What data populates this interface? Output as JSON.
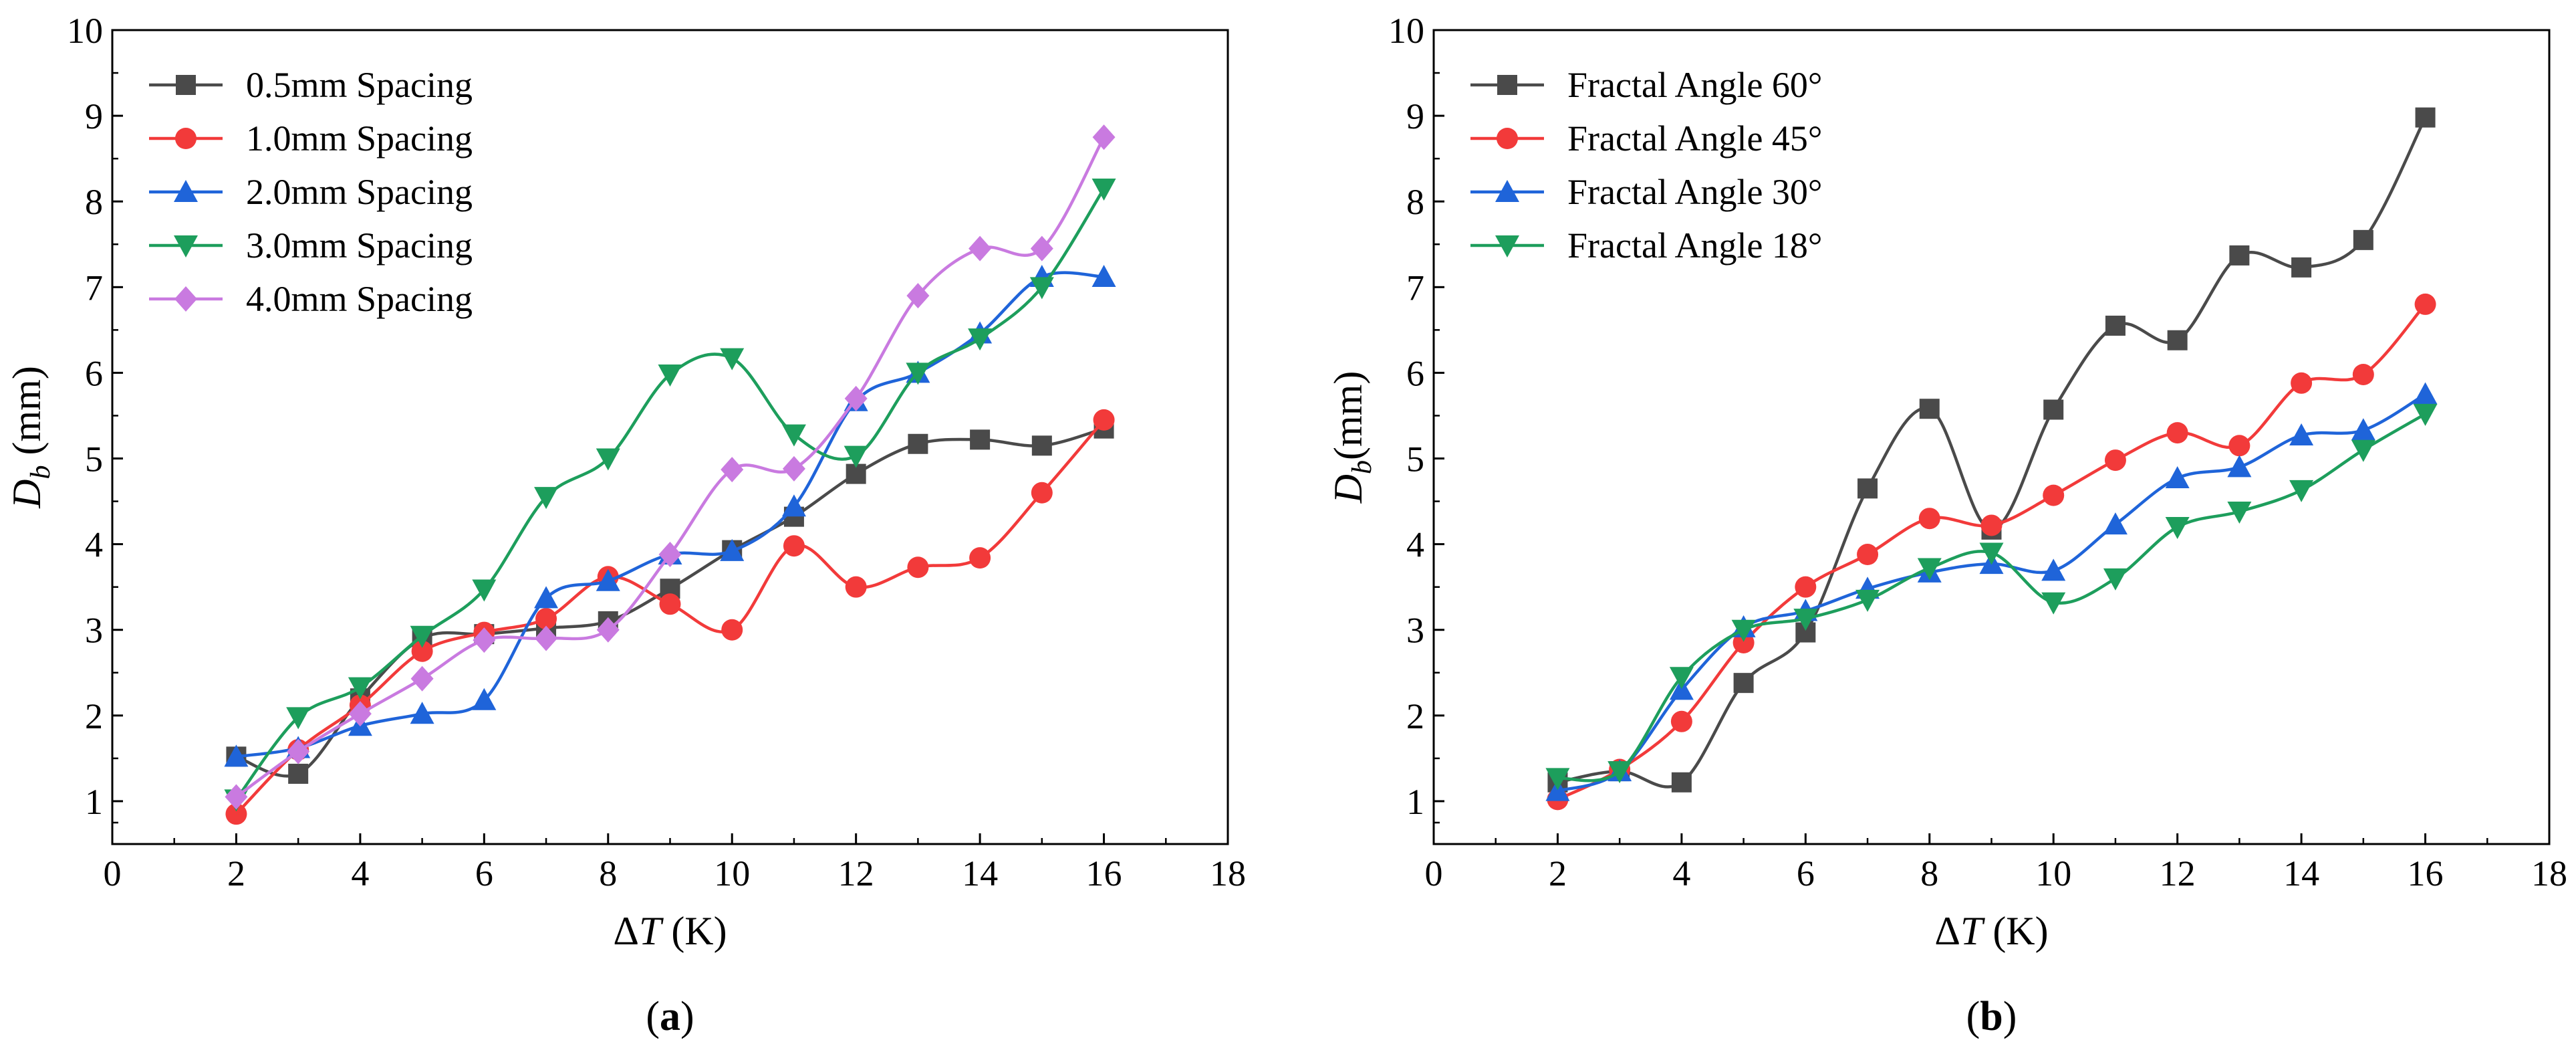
{
  "chart_data": [
    {
      "panel": "a",
      "panel_label": "(a)",
      "type": "line",
      "xlabel": "ΔT (K)",
      "ylabel": "D_b (mm)",
      "ylabel_parts": {
        "symbol": "D",
        "subscript": "b",
        "unit": " (mm)"
      },
      "xlim": [
        0,
        18
      ],
      "ylim": [
        0.5,
        10
      ],
      "xticks": [
        0,
        2,
        4,
        6,
        8,
        10,
        12,
        14,
        16,
        18
      ],
      "yticks": [
        1,
        2,
        3,
        4,
        5,
        6,
        7,
        8,
        9,
        10
      ],
      "legend_position": "top-left",
      "x": [
        2,
        3,
        4,
        5,
        6,
        7,
        8,
        9,
        10,
        11,
        12,
        13,
        14,
        15,
        16
      ],
      "series": [
        {
          "name": "0.5mm Spacing",
          "color": "#4a4a4a",
          "marker": "square",
          "values": [
            1.52,
            1.32,
            2.2,
            2.9,
            2.95,
            3.02,
            3.1,
            3.48,
            3.93,
            4.32,
            4.82,
            5.17,
            5.22,
            5.15,
            5.35
          ]
        },
        {
          "name": "1.0mm Spacing",
          "color": "#f23a3a",
          "marker": "circle",
          "values": [
            0.85,
            1.6,
            2.12,
            2.75,
            2.97,
            3.13,
            3.62,
            3.3,
            3.0,
            3.98,
            3.5,
            3.73,
            3.84,
            4.6,
            5.45
          ]
        },
        {
          "name": "2.0mm Spacing",
          "color": "#1f64d9",
          "marker": "triangle-up",
          "values": [
            1.52,
            1.62,
            1.88,
            2.02,
            2.18,
            3.37,
            3.57,
            3.88,
            3.92,
            4.44,
            5.67,
            6.0,
            6.46,
            7.12,
            7.12
          ]
        },
        {
          "name": "3.0mm Spacing",
          "color": "#1d9e5c",
          "marker": "triangle-down",
          "values": [
            1.02,
            1.98,
            2.33,
            2.93,
            3.47,
            4.55,
            5.0,
            5.98,
            6.17,
            5.28,
            5.03,
            6.0,
            6.4,
            7.0,
            8.15
          ]
        },
        {
          "name": "4.0mm Spacing",
          "color": "#c97ae0",
          "marker": "diamond",
          "values": [
            1.05,
            1.58,
            2.02,
            2.43,
            2.88,
            2.9,
            3.0,
            3.88,
            4.87,
            4.88,
            5.7,
            6.9,
            7.45,
            7.45,
            8.75
          ]
        }
      ]
    },
    {
      "panel": "b",
      "panel_label": "(b)",
      "type": "line",
      "xlabel": "ΔT (K)",
      "ylabel": "D_b(mm)",
      "ylabel_parts": {
        "symbol": "D",
        "subscript": "b",
        "unit": "(mm)"
      },
      "xlim": [
        0,
        18
      ],
      "ylim": [
        0.5,
        10
      ],
      "xticks": [
        0,
        2,
        4,
        6,
        8,
        10,
        12,
        14,
        16,
        18
      ],
      "yticks": [
        1,
        2,
        3,
        4,
        5,
        6,
        7,
        8,
        9,
        10
      ],
      "legend_position": "top-left",
      "x": [
        2,
        3,
        4,
        5,
        6,
        7,
        8,
        9,
        10,
        11,
        12,
        13,
        14,
        15,
        16
      ],
      "series": [
        {
          "name": "Fractal Angle 60°",
          "color": "#4a4a4a",
          "marker": "square",
          "values": [
            1.22,
            1.35,
            1.22,
            2.38,
            2.97,
            4.65,
            5.58,
            4.17,
            5.57,
            6.55,
            6.38,
            7.37,
            7.23,
            7.55,
            8.98
          ]
        },
        {
          "name": "Fractal Angle 45°",
          "color": "#f23a3a",
          "marker": "circle",
          "values": [
            1.02,
            1.37,
            1.93,
            2.85,
            3.5,
            3.88,
            4.3,
            4.22,
            4.57,
            4.98,
            5.3,
            5.15,
            5.88,
            5.98,
            6.8
          ]
        },
        {
          "name": "Fractal Angle 30°",
          "color": "#1f64d9",
          "marker": "triangle-up",
          "values": [
            1.12,
            1.35,
            2.3,
            3.03,
            3.22,
            3.48,
            3.67,
            3.77,
            3.69,
            4.23,
            4.77,
            4.9,
            5.27,
            5.33,
            5.75
          ]
        },
        {
          "name": "Fractal Angle 18°",
          "color": "#1d9e5c",
          "marker": "triangle-down",
          "values": [
            1.27,
            1.35,
            2.45,
            3.0,
            3.13,
            3.35,
            3.72,
            3.9,
            3.32,
            3.6,
            4.2,
            4.38,
            4.63,
            5.1,
            5.52
          ]
        }
      ]
    }
  ]
}
